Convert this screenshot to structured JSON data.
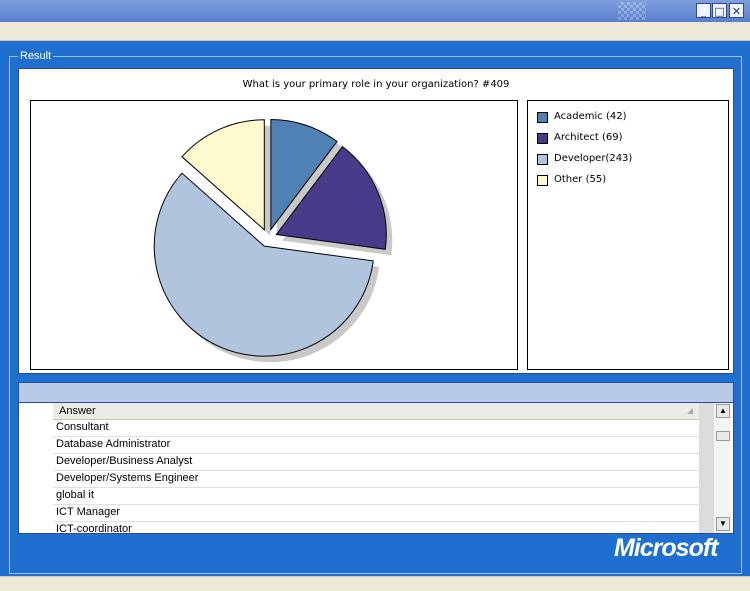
{
  "window": {
    "minimize_glyph": "_",
    "maximize_glyph": "□",
    "close_glyph": "✕"
  },
  "group": {
    "label": "Result"
  },
  "chart_data": {
    "type": "pie",
    "title": "What is your primary role in your organization? #409",
    "categories": [
      "Academic",
      "Architect",
      "Developer",
      "Other"
    ],
    "values": [
      42,
      69,
      243,
      55
    ],
    "colors": [
      "#4f81b4",
      "#4a3a8a",
      "#b0c4de",
      "#fff9cf"
    ],
    "exploded": true,
    "legend_position": "right"
  },
  "legend": {
    "items": [
      {
        "label": "Academic (42)",
        "color": "#4f81b4"
      },
      {
        "label": "Architect (69)",
        "color": "#4a3a8a"
      },
      {
        "label": "Developer(243)",
        "color": "#b0c4de"
      },
      {
        "label": "Other (55)",
        "color": "#fff9cf"
      }
    ]
  },
  "grid": {
    "column_header": "Answer",
    "sort_glyph": "◢",
    "rows": [
      "Consultant",
      "Database Administrator",
      "Developer/Business Analyst",
      "Developer/Systems Engineer",
      "global it",
      "ICT Manager",
      "ICT-coordinator"
    ],
    "scroll_up_glyph": "▲",
    "scroll_down_glyph": "▼"
  },
  "branding": {
    "logo_text": "Microsoft"
  },
  "colors": {
    "titlebar": "#6f8fd8",
    "panel_background": "#1f6fd1",
    "accent_border": "#2b4a9a"
  }
}
